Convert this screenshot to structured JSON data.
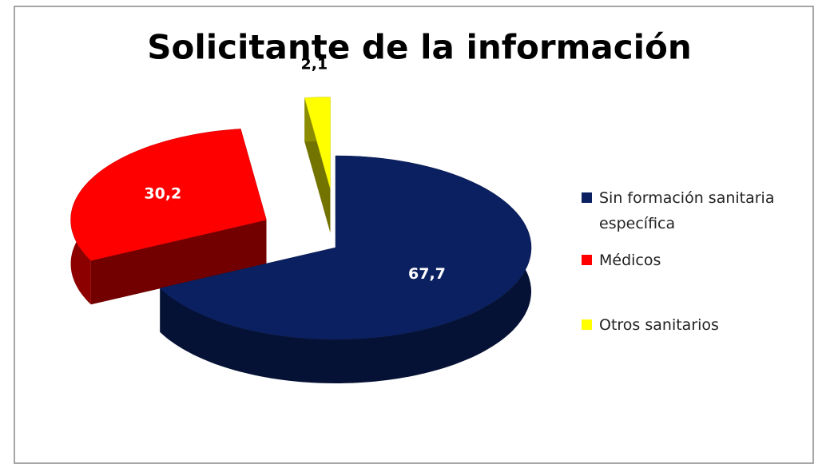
{
  "chart_data": {
    "type": "pie3d",
    "title": "Solicitante de la información",
    "categories": [
      "Sin formación sanitaria específica",
      "Médicos",
      "Otros sanitarios"
    ],
    "values": [
      67.7,
      30.2,
      2.1
    ],
    "value_labels": [
      "67,7",
      "30,2",
      "2,1"
    ],
    "colors": [
      "#0b2060",
      "#ff0000",
      "#ffff00"
    ],
    "legend": "right"
  }
}
